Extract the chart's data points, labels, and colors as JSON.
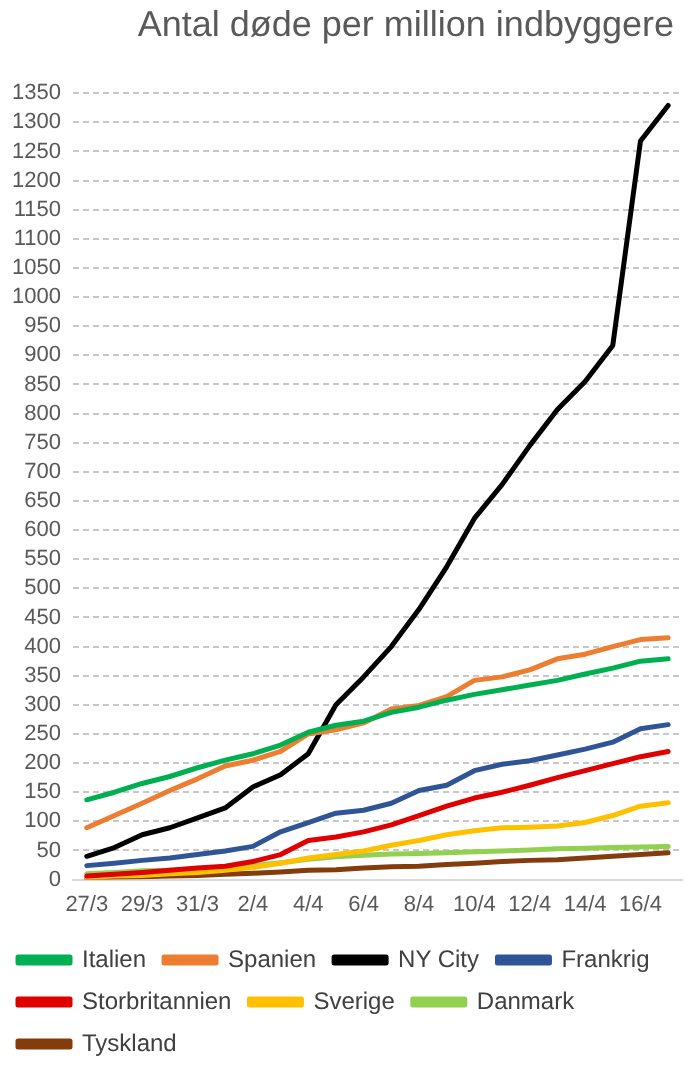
{
  "chart_data": {
    "type": "line",
    "title": "Antal døde per million indbyggere",
    "categories": [
      "27/3",
      null,
      "29/3",
      null,
      "31/3",
      null,
      "2/4",
      null,
      "4/4",
      null,
      "6/4",
      null,
      "8/4",
      null,
      "10/4",
      null,
      "12/4",
      null,
      "14/4",
      null,
      "16/4",
      null
    ],
    "ylim": [
      0,
      1350
    ],
    "yticks": [
      0,
      50,
      100,
      150,
      200,
      250,
      300,
      350,
      400,
      450,
      500,
      550,
      600,
      650,
      700,
      750,
      800,
      850,
      900,
      950,
      1000,
      1050,
      1100,
      1150,
      1200,
      1250,
      1300,
      1350
    ],
    "grid": "y",
    "legend": "bottom",
    "marker": "none",
    "line_style": "solid",
    "series": [
      {
        "name": "Italien",
        "color": "#00b050",
        "values": [
          137,
          150,
          165,
          177,
          192,
          205,
          216,
          231,
          253,
          265,
          272,
          287,
          296,
          308,
          318,
          326,
          334,
          342,
          353,
          363,
          375,
          379
        ]
      },
      {
        "name": "Spanien",
        "color": "#ed7d31",
        "values": [
          89,
          110,
          131,
          153,
          173,
          195,
          205,
          220,
          250,
          257,
          269,
          293,
          299,
          314,
          342,
          348,
          360,
          379,
          387,
          400,
          412,
          415
        ]
      },
      {
        "name": "NY City",
        "color": "#000000",
        "values": [
          40,
          55,
          77,
          89,
          106,
          123,
          159,
          180,
          216,
          300,
          348,
          400,
          464,
          537,
          620,
          678,
          745,
          807,
          855,
          917,
          1268,
          1329
        ]
      },
      {
        "name": "Frankrig",
        "color": "#2f5597",
        "values": [
          24,
          28,
          33,
          37,
          43,
          49,
          57,
          82,
          98,
          114,
          119,
          131,
          153,
          162,
          187,
          198,
          204,
          214,
          224,
          236,
          259,
          266
        ]
      },
      {
        "name": "Storbritannien",
        "color": "#e00000",
        "values": [
          6,
          9,
          12,
          16,
          20,
          23,
          31,
          43,
          67,
          73,
          82,
          94,
          110,
          126,
          140,
          150,
          162,
          175,
          187,
          199,
          211,
          220
        ]
      },
      {
        "name": "Sverige",
        "color": "#ffc000",
        "values": [
          4,
          6,
          7,
          10,
          12,
          16,
          21,
          28,
          37,
          43,
          49,
          59,
          67,
          77,
          84,
          89,
          90,
          92,
          98,
          110,
          126,
          132
        ]
      },
      {
        "name": "Danmark",
        "color": "#92d050",
        "values": [
          10,
          12,
          15,
          16,
          18,
          21,
          24,
          29,
          35,
          39,
          42,
          44,
          45,
          46,
          48,
          49,
          51,
          53,
          54,
          55,
          56,
          57
        ]
      },
      {
        "name": "Tyskland",
        "color": "#843c0c",
        "values": [
          2,
          4,
          5,
          6,
          7,
          9,
          11,
          13,
          16,
          17,
          20,
          22,
          23,
          26,
          28,
          31,
          33,
          34,
          37,
          40,
          43,
          46
        ]
      }
    ]
  }
}
